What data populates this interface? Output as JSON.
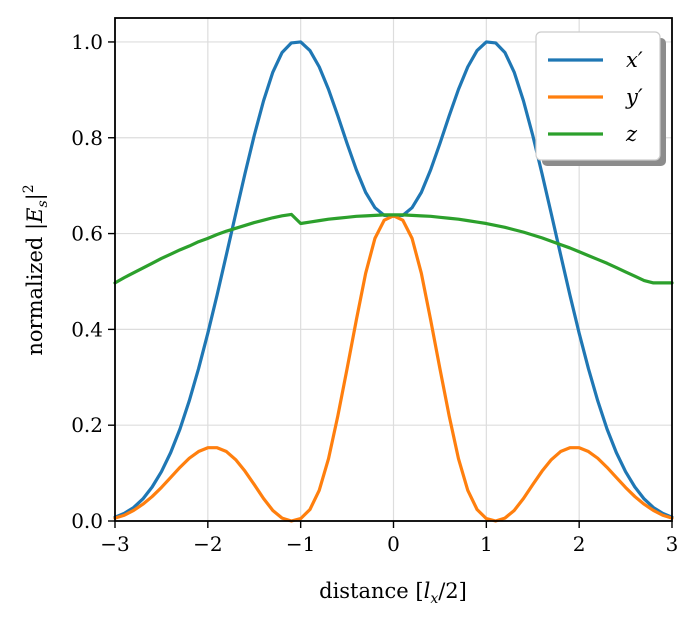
{
  "chart_data": {
    "type": "line",
    "xlabel": "distance [l_x/2]",
    "xlabel_parts": {
      "pre": "distance [",
      "var": "l",
      "sub": "x",
      "post": "/2]"
    },
    "ylabel": "normalized |E_s|^2",
    "ylabel_parts": {
      "pre": "normalized |",
      "var": "E",
      "sub": "s",
      "post": "|",
      "sup": "2"
    },
    "xlim": [
      -3,
      3
    ],
    "ylim": [
      0,
      1.05
    ],
    "xticks": [
      -3,
      -2,
      -1,
      0,
      1,
      2,
      3
    ],
    "xtick_labels": [
      "−3",
      "−2",
      "−1",
      "0",
      "1",
      "2",
      "3"
    ],
    "yticks": [
      0,
      0.2,
      0.4,
      0.6,
      0.8,
      1.0
    ],
    "ytick_labels": [
      "0.0",
      "0.2",
      "0.4",
      "0.6",
      "0.8",
      "1.0"
    ],
    "grid": true,
    "legend_position": "top-right",
    "x": [
      -3.0,
      -2.9,
      -2.8,
      -2.7,
      -2.6,
      -2.5,
      -2.4,
      -2.3,
      -2.2,
      -2.1,
      -2.0,
      -1.9,
      -1.8,
      -1.7,
      -1.6,
      -1.5,
      -1.4,
      -1.3,
      -1.2,
      -1.1,
      -1.0,
      -0.9,
      -0.8,
      -0.7,
      -0.6,
      -0.5,
      -0.4,
      -0.3,
      -0.2,
      -0.1,
      0.0,
      0.1,
      0.2,
      0.3,
      0.4,
      0.5,
      0.6,
      0.7,
      0.8,
      0.9,
      1.0,
      1.1,
      1.2,
      1.3,
      1.4,
      1.5,
      1.6,
      1.7,
      1.8,
      1.9,
      2.0,
      2.1,
      2.2,
      2.3,
      2.4,
      2.5,
      2.6,
      2.7,
      2.8,
      2.9,
      3.0
    ],
    "series": [
      {
        "name": "x′",
        "name_var": "x",
        "color": "#1f77b4",
        "values": [
          0.008,
          0.016,
          0.028,
          0.046,
          0.071,
          0.103,
          0.143,
          0.192,
          0.251,
          0.318,
          0.392,
          0.472,
          0.556,
          0.641,
          0.725,
          0.805,
          0.877,
          0.937,
          0.978,
          0.998,
          1.0,
          0.982,
          0.948,
          0.901,
          0.846,
          0.788,
          0.733,
          0.686,
          0.654,
          0.638,
          0.637,
          0.638,
          0.654,
          0.686,
          0.733,
          0.788,
          0.846,
          0.901,
          0.948,
          0.982,
          1.0,
          0.998,
          0.978,
          0.937,
          0.877,
          0.805,
          0.725,
          0.641,
          0.556,
          0.472,
          0.392,
          0.318,
          0.251,
          0.192,
          0.143,
          0.103,
          0.071,
          0.046,
          0.028,
          0.016,
          0.008
        ]
      },
      {
        "name": "y′",
        "name_var": "y",
        "color": "#ff7f0e",
        "values": [
          0.006,
          0.012,
          0.022,
          0.035,
          0.051,
          0.07,
          0.091,
          0.112,
          0.131,
          0.145,
          0.153,
          0.153,
          0.145,
          0.128,
          0.104,
          0.076,
          0.047,
          0.022,
          0.006,
          0.0,
          0.005,
          0.024,
          0.064,
          0.13,
          0.219,
          0.318,
          0.42,
          0.517,
          0.59,
          0.628,
          0.637,
          0.628,
          0.59,
          0.517,
          0.42,
          0.318,
          0.219,
          0.13,
          0.064,
          0.024,
          0.005,
          0.0,
          0.006,
          0.022,
          0.047,
          0.076,
          0.104,
          0.128,
          0.145,
          0.153,
          0.153,
          0.145,
          0.131,
          0.112,
          0.091,
          0.07,
          0.051,
          0.035,
          0.022,
          0.012,
          0.006
        ]
      },
      {
        "name": "z",
        "name_var": "z",
        "color": "#2ca02c",
        "values": [
          0.497,
          0.508,
          0.518,
          0.528,
          0.538,
          0.548,
          0.557,
          0.566,
          0.574,
          0.583,
          0.59,
          0.598,
          0.605,
          0.611,
          0.617,
          0.623,
          0.628,
          0.633,
          0.637,
          0.64,
          0.621,
          0.624,
          0.627,
          0.63,
          0.632,
          0.634,
          0.636,
          0.637,
          0.638,
          0.639,
          0.639,
          0.639,
          0.638,
          0.637,
          0.636,
          0.634,
          0.632,
          0.63,
          0.627,
          0.624,
          0.621,
          0.617,
          0.613,
          0.608,
          0.603,
          0.597,
          0.591,
          0.584,
          0.577,
          0.57,
          0.562,
          0.554,
          0.546,
          0.538,
          0.529,
          0.52,
          0.511,
          0.502,
          0.497,
          0.497,
          0.497
        ]
      }
    ]
  }
}
